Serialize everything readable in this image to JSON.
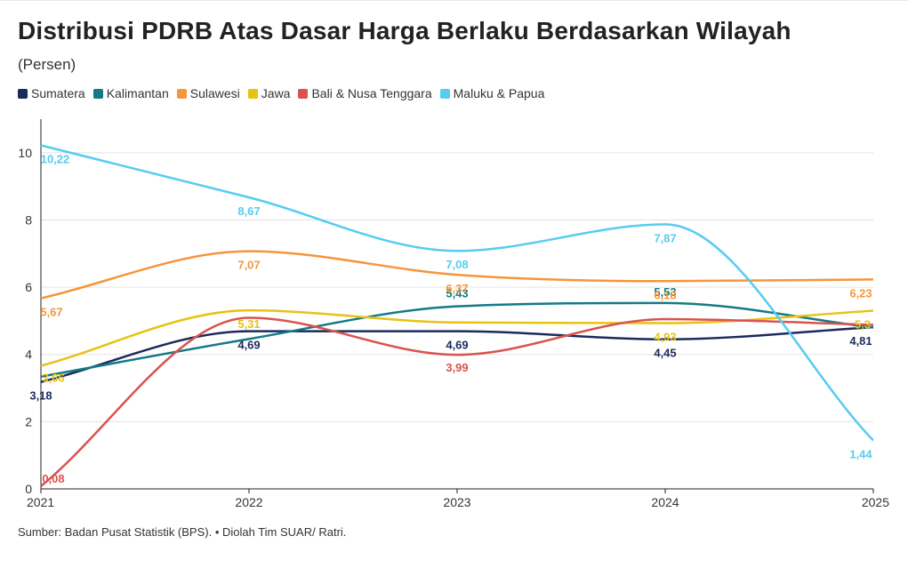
{
  "chart_data": {
    "type": "line",
    "title": "Distribusi PDRB Atas Dasar Harga Berlaku Berdasarkan Wilayah",
    "subtitle": "(Persen)",
    "xlabel": "",
    "ylabel": "",
    "x": [
      "2021",
      "2022",
      "2023",
      "2024",
      "2025"
    ],
    "ylim": [
      0,
      11
    ],
    "yticks": [
      0,
      2,
      4,
      6,
      8,
      10
    ],
    "grid": true,
    "legend": "top-left",
    "series": [
      {
        "name": "Sumatera",
        "color": "#1b2a5c",
        "values": [
          3.18,
          4.69,
          4.69,
          4.45,
          4.81
        ],
        "labels": [
          "3,18",
          "4,69",
          "4,69",
          "4,45",
          "4,81"
        ]
      },
      {
        "name": "Kalimantan",
        "color": "#137a86",
        "values": [
          3.34,
          4.46,
          5.43,
          5.53,
          4.8
        ],
        "labels": [
          "",
          "",
          "5,43",
          "5,53",
          ""
        ]
      },
      {
        "name": "Sulawesi",
        "color": "#f5963b",
        "values": [
          5.67,
          7.07,
          6.37,
          6.18,
          6.23
        ],
        "labels": [
          "5,67",
          "7,07",
          "6,37",
          "6,18",
          "6,23"
        ]
      },
      {
        "name": "Jawa",
        "color": "#e8c213",
        "values": [
          3.66,
          5.31,
          4.95,
          4.93,
          5.3
        ],
        "labels": [
          "3,66",
          "5,31",
          "",
          "4,93",
          "5,3"
        ]
      },
      {
        "name": "Bali & Nusa Tenggara",
        "color": "#d9534f",
        "values": [
          0.08,
          5.09,
          3.99,
          5.05,
          4.88
        ],
        "labels": [
          "0,08",
          "",
          "3,99",
          "",
          ""
        ]
      },
      {
        "name": "Maluku & Papua",
        "color": "#56ccf0",
        "values": [
          10.22,
          8.67,
          7.08,
          7.87,
          1.44
        ],
        "labels": [
          "10,22",
          "8,67",
          "7,08",
          "7,87",
          "1,44"
        ]
      }
    ]
  },
  "source": "Sumber: Badan Pusat Statistik (BPS). • Diolah Tim SUAR/ Ratri."
}
